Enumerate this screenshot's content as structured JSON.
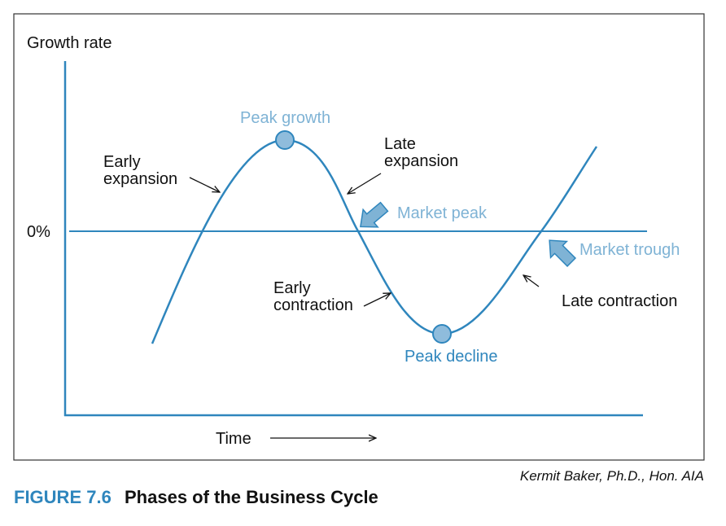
{
  "axes": {
    "y_label": "Growth rate",
    "zero_label": "0%",
    "x_label": "Time"
  },
  "phases": {
    "early_expansion": [
      "Early",
      "expansion"
    ],
    "late_expansion": [
      "Late",
      "expansion"
    ],
    "early_contraction": [
      "Early",
      "contraction"
    ],
    "late_contraction": "Late contraction"
  },
  "points": {
    "peak_growth": "Peak growth",
    "peak_decline": "Peak decline",
    "market_peak": "Market peak",
    "market_trough": "Market trough"
  },
  "credit": "Kermit Baker, Ph.D., Hon. AIA",
  "figure": {
    "number": "FIGURE 7.6",
    "title": "Phases of the Business Cycle"
  }
}
